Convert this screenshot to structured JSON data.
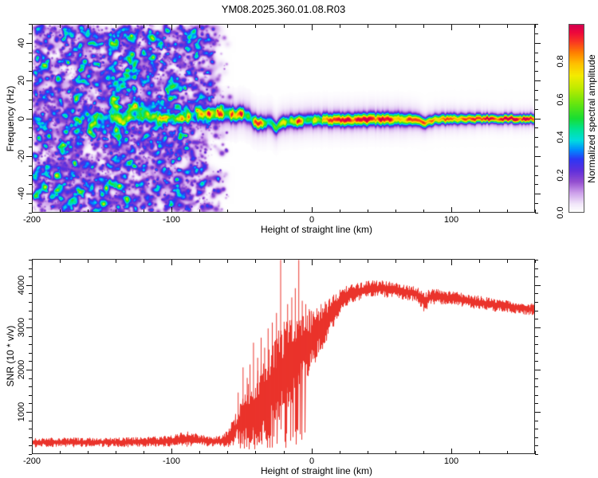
{
  "title": "YM08.2025.360.01.08.R03",
  "colors": {
    "trace": "#ea332b",
    "frame": "#2b2b2b",
    "tick": "#111111",
    "text": "#000000",
    "background": "#ffffff"
  },
  "chart_data": [
    {
      "type": "heatmap",
      "title": "YM08.2025.360.01.08.R03",
      "xlabel": "Height of straight line (km)",
      "ylabel": "Frequency (Hz)",
      "xlim": [
        -200,
        160
      ],
      "ylim": [
        -50,
        50
      ],
      "xticks": [
        -200,
        -100,
        0,
        100
      ],
      "xtick_labels": [
        "-200",
        "-100",
        "0",
        "100"
      ],
      "xtick_minor_step": 20,
      "yticks": [
        40,
        20,
        0,
        -20,
        -40
      ],
      "ytick_labels": [
        "40",
        "20",
        "0",
        "-20",
        "-40"
      ],
      "ytick_minor_step": 5,
      "grid": false,
      "colorbar": {
        "label": "Normalized spectral amplitude",
        "tick_values": [
          0,
          0.2,
          0.4,
          0.6,
          0.8
        ],
        "tick_labels": [
          "0.0",
          "0.2",
          "0.4",
          "0.6",
          "0.8"
        ],
        "range": [
          0,
          1
        ]
      },
      "colormap_stops": [
        [
          0.0,
          255,
          255,
          255
        ],
        [
          0.04,
          242,
          231,
          250
        ],
        [
          0.1,
          205,
          160,
          235
        ],
        [
          0.16,
          148,
          78,
          208
        ],
        [
          0.22,
          95,
          48,
          220
        ],
        [
          0.28,
          45,
          55,
          245
        ],
        [
          0.33,
          0,
          140,
          255
        ],
        [
          0.38,
          0,
          220,
          225
        ],
        [
          0.44,
          0,
          228,
          150
        ],
        [
          0.5,
          25,
          222,
          50
        ],
        [
          0.58,
          105,
          230,
          15
        ],
        [
          0.66,
          190,
          235,
          0
        ],
        [
          0.73,
          245,
          235,
          0
        ],
        [
          0.79,
          255,
          195,
          0
        ],
        [
          0.85,
          255,
          130,
          0
        ],
        [
          0.91,
          250,
          55,
          35
        ],
        [
          0.96,
          238,
          8,
          60
        ],
        [
          1.0,
          212,
          0,
          78
        ]
      ],
      "noise_region": {
        "x_range": [
          -200,
          -58
        ],
        "fade_start": -88,
        "amp_range": [
          0.05,
          0.2
        ],
        "blob_count": 2600,
        "faint_blob_count": 700,
        "speckle_count": 1500
      },
      "signal_track": {
        "comment": "columns: height_km, center_freq_Hz, half_width_Hz, amplitude_0_1",
        "points": [
          [
            -200,
            0,
            1.6,
            0.1
          ],
          [
            -185,
            0.3,
            1.8,
            0.13
          ],
          [
            -170,
            -0.2,
            1.8,
            0.15
          ],
          [
            -158,
            0.2,
            1.8,
            0.3
          ],
          [
            -150,
            0,
            1.8,
            0.18
          ],
          [
            -140,
            -0.3,
            1.8,
            0.32
          ],
          [
            -128,
            0.2,
            1.8,
            0.22
          ],
          [
            -118,
            0,
            1.8,
            0.38
          ],
          [
            -110,
            0,
            1.7,
            0.5
          ],
          [
            -104,
            0,
            1.6,
            0.58
          ],
          [
            -97,
            0,
            1.6,
            0.52
          ],
          [
            -90,
            0.3,
            1.7,
            0.45
          ],
          [
            -86,
            0.8,
            1.9,
            0.35
          ],
          [
            -80,
            1.5,
            2.0,
            0.55
          ],
          [
            -75,
            2.2,
            2.2,
            0.68
          ],
          [
            -70,
            3.0,
            2.2,
            0.72
          ],
          [
            -66,
            2.6,
            2.3,
            0.78
          ],
          [
            -62,
            3.0,
            2.3,
            0.74
          ],
          [
            -58,
            2.4,
            2.3,
            0.82
          ],
          [
            -54,
            2.0,
            2.2,
            0.88
          ],
          [
            -50,
            2.6,
            2.1,
            0.9
          ],
          [
            -47,
            1.8,
            2.2,
            0.84
          ],
          [
            -44,
            0.5,
            2.2,
            0.78
          ],
          [
            -41,
            -1.5,
            2.1,
            0.8
          ],
          [
            -38,
            -3.0,
            2.0,
            0.84
          ],
          [
            -35,
            -2.2,
            2.0,
            0.8
          ],
          [
            -31,
            -2.0,
            2.0,
            0.86
          ],
          [
            -28,
            -2.6,
            2.0,
            0.88
          ],
          [
            -25,
            -4.8,
            1.9,
            0.74
          ],
          [
            -23,
            -3.0,
            1.9,
            0.8
          ],
          [
            -20,
            -1.8,
            1.9,
            0.86
          ],
          [
            -16,
            -1.6,
            1.9,
            0.9
          ],
          [
            -12,
            -1.2,
            1.9,
            0.86
          ],
          [
            -8,
            -1.2,
            1.9,
            0.88
          ],
          [
            -4,
            -1.0,
            1.9,
            0.92
          ],
          [
            0,
            -0.8,
            1.9,
            0.9
          ],
          [
            5,
            -0.8,
            1.9,
            0.84
          ],
          [
            10,
            -0.6,
            1.9,
            0.82
          ],
          [
            15,
            -0.6,
            1.9,
            0.86
          ],
          [
            20,
            -0.5,
            1.9,
            0.88
          ],
          [
            25,
            -0.5,
            1.9,
            0.92
          ],
          [
            30,
            -0.5,
            1.9,
            0.9
          ],
          [
            35,
            -0.5,
            1.9,
            0.94
          ],
          [
            40,
            -0.5,
            1.9,
            0.95
          ],
          [
            45,
            -0.4,
            1.9,
            0.92
          ],
          [
            50,
            -0.4,
            1.9,
            0.9
          ],
          [
            55,
            -0.3,
            1.9,
            0.86
          ],
          [
            60,
            -0.2,
            1.9,
            0.82
          ],
          [
            65,
            -0.2,
            1.9,
            0.8
          ],
          [
            70,
            -0.3,
            1.8,
            0.84
          ],
          [
            75,
            -0.8,
            1.7,
            0.86
          ],
          [
            79,
            -1.8,
            1.6,
            0.82
          ],
          [
            82,
            -2.8,
            1.5,
            0.9
          ],
          [
            85,
            -1.2,
            1.5,
            0.86
          ],
          [
            89,
            -0.4,
            1.5,
            0.82
          ],
          [
            95,
            -0.2,
            1.5,
            0.84
          ],
          [
            102,
            -0.2,
            1.5,
            0.88
          ],
          [
            110,
            -0.1,
            1.4,
            0.86
          ],
          [
            118,
            -0.1,
            1.4,
            0.9
          ],
          [
            126,
            0,
            1.3,
            0.92
          ],
          [
            135,
            0,
            1.3,
            0.9
          ],
          [
            145,
            0,
            1.3,
            0.92
          ],
          [
            152,
            0,
            1.3,
            0.94
          ],
          [
            160,
            0,
            1.3,
            0.92
          ]
        ]
      }
    },
    {
      "type": "line",
      "xlabel": "Height of straight line (km)",
      "ylabel": "SNR (10 * v/v)",
      "xlim": [
        -200,
        160
      ],
      "ylim": [
        0,
        4620
      ],
      "xticks": [
        -200,
        -100,
        0,
        100
      ],
      "xtick_labels": [
        "-200",
        "-100",
        "0",
        "100"
      ],
      "xtick_minor_step": 20,
      "yticks": [
        1000,
        2000,
        3000,
        4000
      ],
      "ytick_labels": [
        "1000",
        "2000",
        "3000",
        "4000"
      ],
      "ytick_minor_step": 200,
      "grid": false,
      "series": [
        {
          "name": "SNR",
          "color": "#ea332b",
          "envelope_comment": "columns: height_km, mean_SNR, noise_half_amplitude",
          "envelope": [
            [
              -200,
              260,
              100
            ],
            [
              -185,
              265,
              95
            ],
            [
              -170,
              262,
              100
            ],
            [
              -155,
              268,
              95
            ],
            [
              -140,
              262,
              100
            ],
            [
              -125,
              270,
              105
            ],
            [
              -110,
              285,
              110
            ],
            [
              -100,
              300,
              120
            ],
            [
              -93,
              330,
              160
            ],
            [
              -87,
              345,
              170
            ],
            [
              -80,
              320,
              130
            ],
            [
              -74,
              295,
              115
            ],
            [
              -68,
              285,
              110
            ],
            [
              -63,
              300,
              130
            ],
            [
              -59,
              380,
              220
            ],
            [
              -55,
              520,
              340
            ],
            [
              -51,
              680,
              520
            ],
            [
              -47,
              820,
              640
            ],
            [
              -43,
              1000,
              780
            ],
            [
              -39,
              1080,
              840
            ],
            [
              -35,
              1260,
              900
            ],
            [
              -31,
              1450,
              980
            ],
            [
              -27,
              1570,
              1060
            ],
            [
              -23,
              1780,
              1080
            ],
            [
              -19,
              1980,
              1040
            ],
            [
              -15,
              2120,
              1000
            ],
            [
              -11,
              2300,
              940
            ],
            [
              -7,
              2480,
              840
            ],
            [
              -3,
              2600,
              740
            ],
            [
              1,
              2700,
              640
            ],
            [
              5,
              2880,
              540
            ],
            [
              9,
              3080,
              470
            ],
            [
              13,
              3280,
              400
            ],
            [
              17,
              3470,
              330
            ],
            [
              21,
              3620,
              270
            ],
            [
              25,
              3740,
              230
            ],
            [
              30,
              3830,
              200
            ],
            [
              35,
              3880,
              190
            ],
            [
              40,
              3910,
              185
            ],
            [
              45,
              3930,
              185
            ],
            [
              50,
              3935,
              180
            ],
            [
              55,
              3915,
              175
            ],
            [
              60,
              3895,
              170
            ],
            [
              65,
              3865,
              165
            ],
            [
              70,
              3840,
              165
            ],
            [
              75,
              3805,
              170
            ],
            [
              79,
              3680,
              210
            ],
            [
              82,
              3620,
              230
            ],
            [
              85,
              3720,
              175
            ],
            [
              90,
              3745,
              160
            ],
            [
              95,
              3725,
              155
            ],
            [
              100,
              3705,
              155
            ],
            [
              108,
              3665,
              150
            ],
            [
              116,
              3620,
              145
            ],
            [
              124,
              3580,
              145
            ],
            [
              132,
              3545,
              140
            ],
            [
              140,
              3510,
              135
            ],
            [
              148,
              3470,
              130
            ],
            [
              154,
              3450,
              125
            ],
            [
              160,
              3430,
              125
            ]
          ],
          "spikes_comment": "columns: height_km, spike_peak_SNR",
          "spikes": [
            [
              -52.5,
              1450
            ],
            [
              -49,
              2050
            ],
            [
              -46,
              1800
            ],
            [
              -44,
              2120
            ],
            [
              -41.5,
              2640
            ],
            [
              -38.5,
              2280
            ],
            [
              -36,
              2760
            ],
            [
              -33.5,
              2520
            ],
            [
              -31,
              2980
            ],
            [
              -28,
              3120
            ],
            [
              -25,
              3350
            ],
            [
              -22,
              4615
            ],
            [
              -19.5,
              3140
            ],
            [
              -17,
              3560
            ],
            [
              -14,
              3720
            ],
            [
              -11.5,
              3940
            ],
            [
              -9,
              4615
            ],
            [
              -6.5,
              3640
            ],
            [
              -4,
              3560
            ],
            [
              -1.5,
              3440
            ],
            [
              1.5,
              3380
            ],
            [
              4,
              3460
            ],
            [
              7,
              3560
            ],
            [
              10,
              3620
            ],
            [
              13,
              3680
            ]
          ]
        }
      ]
    }
  ]
}
